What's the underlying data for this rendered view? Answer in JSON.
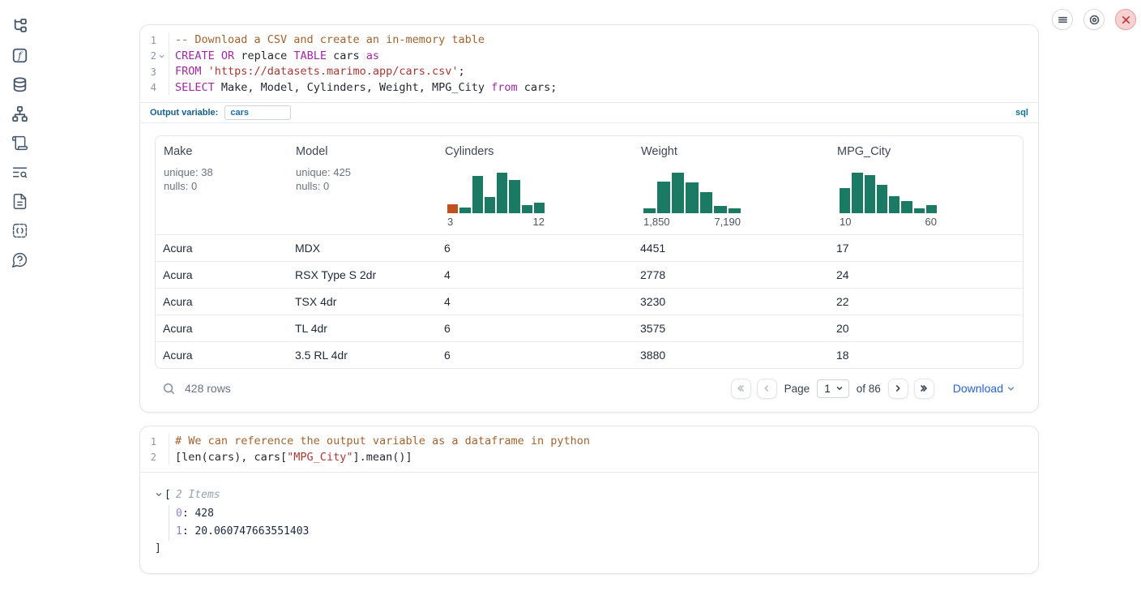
{
  "colors": {
    "keyword": "#a626a4",
    "string": "#ab3732",
    "comment": "#a5632d",
    "hist_green": "#1b7a63",
    "hist_orange": "#c1501f",
    "download_blue": "#2563d6",
    "close_red": "#c43434"
  },
  "sidebar": {
    "icons": [
      "file-tree-icon",
      "function-icon",
      "datasources-icon",
      "dependency-graph-icon",
      "scratchpad-icon",
      "logs-search-icon",
      "documentation-icon",
      "snippets-icon",
      "help-icon"
    ]
  },
  "topbar": {
    "buttons": [
      "menu-icon",
      "settings-gear-icon",
      "shutdown-close-icon"
    ]
  },
  "cells": [
    {
      "language": "sql",
      "lines": [
        {
          "n": "1",
          "fold": false,
          "tokens": [
            [
              "comment",
              "-- Download a CSV and create an in-memory table"
            ]
          ]
        },
        {
          "n": "2",
          "fold": true,
          "tokens": [
            [
              "kw",
              "CREATE"
            ],
            [
              "plain",
              " "
            ],
            [
              "kw",
              "OR"
            ],
            [
              "plain",
              " replace "
            ],
            [
              "kw",
              "TABLE"
            ],
            [
              "plain",
              " cars "
            ],
            [
              "kw",
              "as"
            ]
          ]
        },
        {
          "n": "3",
          "fold": false,
          "tokens": [
            [
              "kw",
              "FROM"
            ],
            [
              "plain",
              " "
            ],
            [
              "str",
              "'https://datasets.marimo.app/cars.csv'"
            ],
            [
              "plain",
              ";"
            ]
          ]
        },
        {
          "n": "4",
          "fold": false,
          "tokens": [
            [
              "kw",
              "SELECT"
            ],
            [
              "plain",
              " Make, Model, Cylinders, Weight, MPG_City "
            ],
            [
              "kw",
              "from"
            ],
            [
              "plain",
              " cars;"
            ]
          ]
        }
      ],
      "meta": {
        "label": "Output variable:",
        "value": "cars",
        "badge": "sql"
      }
    },
    {
      "language": "python",
      "lines": [
        {
          "n": "1",
          "fold": false,
          "tokens": [
            [
              "comment",
              "# We can reference the output variable as a dataframe in python"
            ]
          ]
        },
        {
          "n": "2",
          "fold": false,
          "tokens": [
            [
              "plain",
              "[len(cars), cars["
            ],
            [
              "str",
              "\"MPG_City\""
            ],
            [
              "plain",
              "].mean()]"
            ]
          ]
        }
      ]
    }
  ],
  "table": {
    "columns": [
      {
        "name": "Make",
        "kind": "stats",
        "unique": "unique: 38",
        "nulls": "nulls: 0"
      },
      {
        "name": "Model",
        "kind": "stats",
        "unique": "unique: 425",
        "nulls": "nulls: 0"
      },
      {
        "name": "Cylinders",
        "kind": "histogram",
        "bars": [
          {
            "v": 0.22,
            "color": "#c1501f"
          },
          {
            "v": 0.13
          },
          {
            "v": 0.92
          },
          {
            "v": 0.4
          },
          {
            "v": 1.0
          },
          {
            "v": 0.82
          },
          {
            "v": 0.2
          },
          {
            "v": 0.26
          }
        ],
        "axis_min": "3",
        "axis_max": "12"
      },
      {
        "name": "Weight",
        "kind": "histogram",
        "bars": [
          {
            "v": 0.12
          },
          {
            "v": 0.77
          },
          {
            "v": 1.0
          },
          {
            "v": 0.75
          },
          {
            "v": 0.52
          },
          {
            "v": 0.17
          },
          {
            "v": 0.12
          }
        ],
        "axis_min": "1,850",
        "axis_max": "7,190"
      },
      {
        "name": "MPG_City",
        "kind": "histogram",
        "bars": [
          {
            "v": 0.62
          },
          {
            "v": 1.0
          },
          {
            "v": 0.93
          },
          {
            "v": 0.7
          },
          {
            "v": 0.42
          },
          {
            "v": 0.3
          },
          {
            "v": 0.12
          },
          {
            "v": 0.2
          }
        ],
        "axis_min": "10",
        "axis_max": "60"
      }
    ],
    "rows": [
      [
        "Acura",
        "MDX",
        "6",
        "4451",
        "17"
      ],
      [
        "Acura",
        "RSX Type S 2dr",
        "4",
        "2778",
        "24"
      ],
      [
        "Acura",
        "TSX 4dr",
        "4",
        "3230",
        "22"
      ],
      [
        "Acura",
        "TL 4dr",
        "6",
        "3575",
        "20"
      ],
      [
        "Acura",
        "3.5 RL 4dr",
        "6",
        "3880",
        "18"
      ]
    ],
    "footer": {
      "row_count": "428 rows",
      "page_label": "Page",
      "page_value": "1",
      "of_label": "of 86",
      "download_label": "Download"
    }
  },
  "output_tree": {
    "bracket_open": "[",
    "items_label": "2 Items",
    "entries": [
      {
        "key": "0",
        "value": "428"
      },
      {
        "key": "1",
        "value": "20.060747663551403"
      }
    ],
    "bracket_close": "]"
  }
}
